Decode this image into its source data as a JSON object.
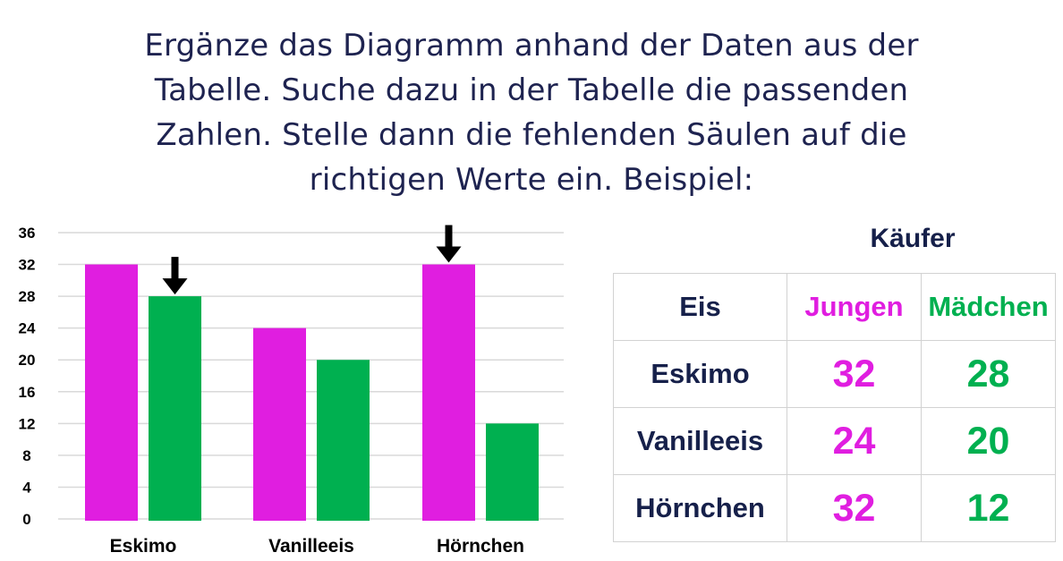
{
  "instructions": {
    "lines": [
      "Ergänze das Diagramm anhand der Daten aus der",
      "Tabelle. Suche dazu in der Tabelle die passenden",
      "Zahlen. Stelle dann die fehlenden Säulen auf die",
      "richtigen Werte ein. Beispiel:"
    ]
  },
  "colors": {
    "jungen": "#e01ee0",
    "maedchen": "#00b050",
    "text": "#16204a",
    "grid": "#d9d9d9"
  },
  "chart_data": {
    "type": "bar",
    "categories": [
      "Eskimo",
      "Vanilleeis",
      "Hörnchen"
    ],
    "series": [
      {
        "values": [
          32,
          24,
          32
        ],
        "color": "#e01ee0"
      },
      {
        "values": [
          28,
          20,
          12
        ],
        "color": "#00b050"
      }
    ],
    "ylim": [
      0,
      36
    ],
    "yticks": [
      0,
      4,
      8,
      12,
      16,
      20,
      24,
      28,
      32,
      36
    ],
    "grid": true,
    "annotations": [
      {
        "type": "down-arrow-icon",
        "category": "Eskimo",
        "series": 1
      },
      {
        "type": "down-arrow-icon",
        "category": "Hörnchen",
        "series": 0
      }
    ]
  },
  "table": {
    "title": "Käufer",
    "header": [
      "Eis",
      "Jungen",
      "Mädchen"
    ],
    "rows": [
      [
        "Eskimo",
        "32",
        "28"
      ],
      [
        "Vanilleeis",
        "24",
        "20"
      ],
      [
        "Hörnchen",
        "32",
        "12"
      ]
    ]
  }
}
